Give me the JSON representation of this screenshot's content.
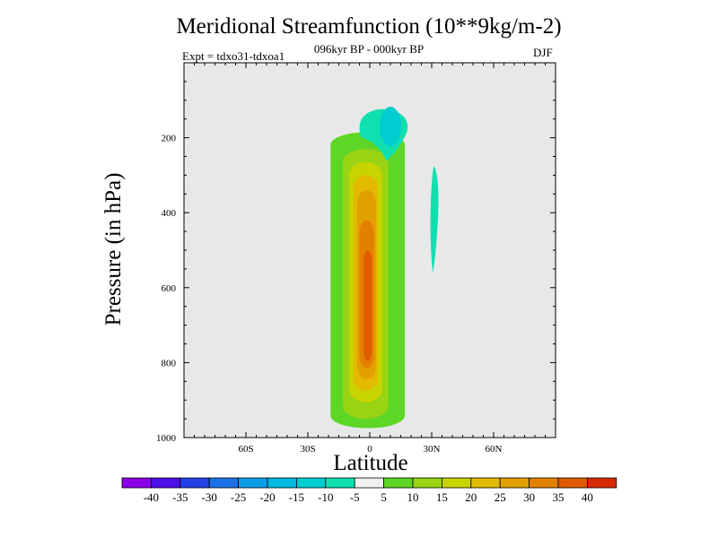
{
  "chart_data": {
    "type": "contour",
    "title": "Meridional Streamfunction (10**9kg/m-2)",
    "subtitle": "096kyr BP - 000kyr BP",
    "experiment": "Expt = tdxo31-tdxoa1",
    "season": "DJF",
    "xlabel": "Latitude",
    "ylabel": "Pressure (in hPa)",
    "xlim": [
      -90,
      90
    ],
    "ylim": [
      1000,
      0
    ],
    "x_ticks": [
      {
        "value": -60,
        "label": "60S"
      },
      {
        "value": -30,
        "label": "30S"
      },
      {
        "value": 0,
        "label": "0"
      },
      {
        "value": 30,
        "label": "30N"
      },
      {
        "value": 60,
        "label": "60N"
      }
    ],
    "y_ticks": [
      {
        "value": 200,
        "label": "200"
      },
      {
        "value": 400,
        "label": "400"
      },
      {
        "value": 600,
        "label": "600"
      },
      {
        "value": 800,
        "label": "800"
      },
      {
        "value": 1000,
        "label": "1000"
      }
    ],
    "background_color": "#e8e8e8",
    "contour_levels": [
      {
        "label": "-40",
        "color": "#8a00e6"
      },
      {
        "label": "-35",
        "color": "#4e0ee6"
      },
      {
        "label": "-30",
        "color": "#2440e6"
      },
      {
        "label": "-25",
        "color": "#1a72e6"
      },
      {
        "label": "-20",
        "color": "#0c9ee6"
      },
      {
        "label": "-15",
        "color": "#00b8e0"
      },
      {
        "label": "-10",
        "color": "#00cdd0"
      },
      {
        "label": "-5",
        "color": "#10e0b0"
      },
      {
        "label": "5",
        "color": "#f0f0f0"
      },
      {
        "label": "10",
        "color": "#5ed625"
      },
      {
        "label": "15",
        "color": "#98d414"
      },
      {
        "label": "20",
        "color": "#c8d400"
      },
      {
        "label": "25",
        "color": "#e2ba00"
      },
      {
        "label": "30",
        "color": "#e2a000"
      },
      {
        "label": "35",
        "color": "#e48000"
      },
      {
        "label": "40",
        "color": "#e05a00"
      },
      {
        "label": "",
        "color": "#d82800"
      }
    ],
    "features": [
      {
        "name": "positive-cell",
        "level": "5",
        "center_lat": 0,
        "center_p": 570,
        "lat_halfwidth": 18,
        "p_top": 180,
        "p_bottom": 975
      },
      {
        "name": "negative-cell-upper",
        "level": "-5",
        "center_lat": 5,
        "center_p": 180,
        "lat_halfwidth": 12,
        "p_top": 120,
        "p_bottom": 255
      },
      {
        "name": "negative-cell-30n",
        "level": "-5",
        "center_lat": 31,
        "center_p": 420,
        "lat_halfwidth": 2,
        "p_top": 275,
        "p_bottom": 560
      }
    ]
  }
}
